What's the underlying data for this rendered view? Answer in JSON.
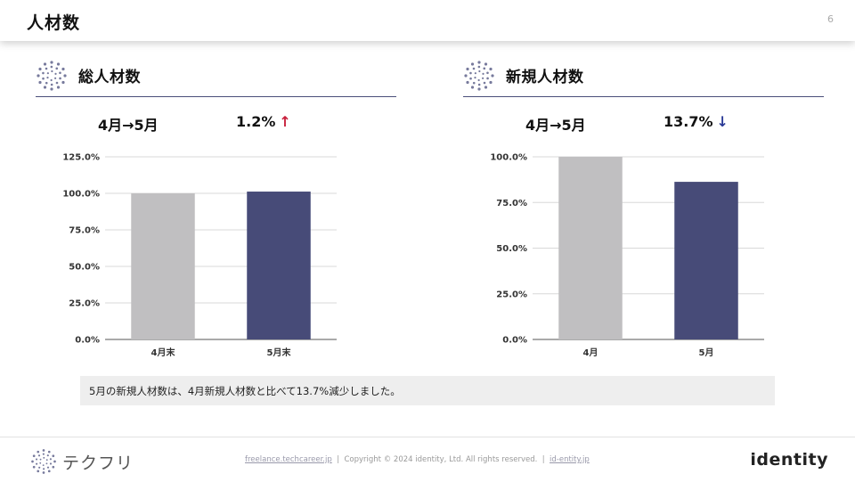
{
  "header": {
    "title": "人材数",
    "page_number": "6"
  },
  "panels": {
    "left": {
      "title": "総人材数",
      "period": "4月→5月",
      "change": "1.2%",
      "direction": "up",
      "arrow": "↑"
    },
    "right": {
      "title": "新規人材数",
      "period": "4月→5月",
      "change": "13.7%",
      "direction": "down",
      "arrow": "↓"
    }
  },
  "chart_data": [
    {
      "type": "bar",
      "title": "",
      "categories": [
        "4月末",
        "5月末"
      ],
      "values": [
        100.0,
        101.2
      ],
      "ylim": [
        0,
        125
      ],
      "yticks": [
        0,
        25,
        50,
        75,
        100,
        125
      ],
      "ytick_labels": [
        "0.0%",
        "25.0%",
        "50.0%",
        "75.0%",
        "100.0%",
        "125.0%"
      ],
      "bar_colors": [
        "#c0bfc1",
        "#474b78"
      ],
      "grid": true,
      "xlabel": "",
      "ylabel": ""
    },
    {
      "type": "bar",
      "title": "",
      "categories": [
        "4月",
        "5月"
      ],
      "values": [
        100.0,
        86.3
      ],
      "ylim": [
        0,
        100
      ],
      "yticks": [
        0,
        25,
        50,
        75,
        100
      ],
      "ytick_labels": [
        "0.0%",
        "25.0%",
        "50.0%",
        "75.0%",
        "100.0%"
      ],
      "bar_colors": [
        "#c0bfc1",
        "#474b78"
      ],
      "grid": true,
      "xlabel": "",
      "ylabel": ""
    }
  ],
  "note": "5月の新規人材数は、4月新規人材数と比べて13.7%減少しました。",
  "footer": {
    "brand_left": "テクフリ",
    "link1": "freelance.techcareer.jp",
    "copyright": "Copyright © 2024 identity, Ltd. All rights reserved.",
    "link2": "id-entity.jp",
    "separator": "|",
    "brand_right": "identity"
  },
  "colors": {
    "accent_navy": "#474b78",
    "bar_gray": "#c0bfc1",
    "up_red": "#c8203c",
    "down_blue": "#2a3a96"
  },
  "icons": [
    "dot-circle-icon",
    "arrow-up-icon",
    "arrow-down-icon"
  ]
}
